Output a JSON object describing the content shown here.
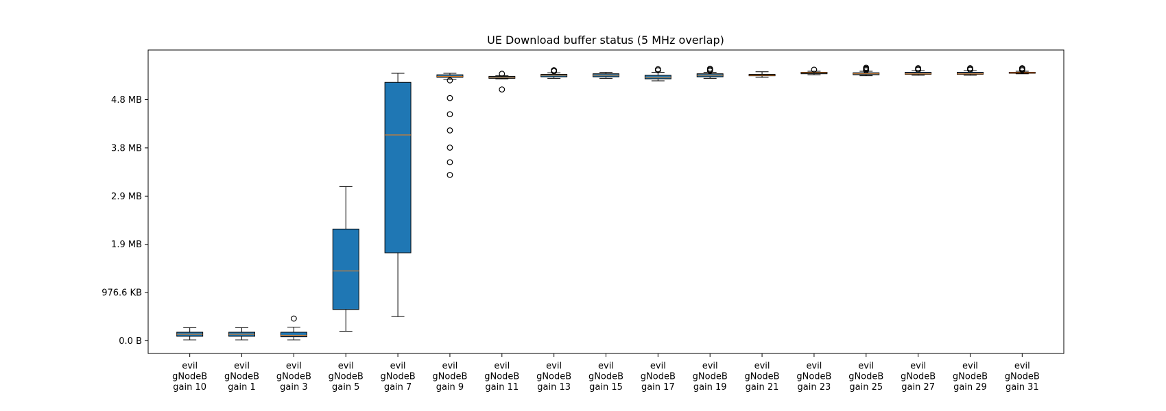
{
  "chart_data": {
    "type": "box",
    "title": "UE Download buffer status (5 MHz overlap)",
    "xlabel": "",
    "ylabel": "",
    "ylim": [
      -0.25,
      5.75
    ],
    "y_ticks": [
      {
        "value": 0.0,
        "label": "0.0 B"
      },
      {
        "value": 0.9537,
        "label": "976.6 KB"
      },
      {
        "value": 1.9073,
        "label": "1.9 MB"
      },
      {
        "value": 2.861,
        "label": "2.9 MB"
      },
      {
        "value": 3.8147,
        "label": "3.8 MB"
      },
      {
        "value": 4.7684,
        "label": "4.8 MB"
      }
    ],
    "units": "MB",
    "colors": {
      "box_fill": "#1f77b4",
      "median": "#ff7f0e",
      "edge": "#000000"
    },
    "categories": [
      "evil gNodeB gain 10",
      "evil gNodeB gain 1",
      "evil gNodeB gain 3",
      "evil gNodeB gain 5",
      "evil gNodeB gain 7",
      "evil gNodeB gain 9",
      "evil gNodeB gain 11",
      "evil gNodeB gain 13",
      "evil gNodeB gain 15",
      "evil gNodeB gain 17",
      "evil gNodeB gain 19",
      "evil gNodeB gain 21",
      "evil gNodeB gain 23",
      "evil gNodeB gain 25",
      "evil gNodeB gain 27",
      "evil gNodeB gain 29",
      "evil gNodeB gain 31"
    ],
    "boxes": [
      {
        "whislo": 0.02,
        "q1": 0.09,
        "med": 0.13,
        "q3": 0.17,
        "whishi": 0.26,
        "fliers": []
      },
      {
        "whislo": 0.02,
        "q1": 0.09,
        "med": 0.13,
        "q3": 0.17,
        "whishi": 0.26,
        "fliers": []
      },
      {
        "whislo": 0.02,
        "q1": 0.08,
        "med": 0.11,
        "q3": 0.17,
        "whishi": 0.27,
        "fliers": [
          0.44
        ]
      },
      {
        "whislo": 0.19,
        "q1": 0.62,
        "med": 1.38,
        "q3": 2.21,
        "whishi": 3.05,
        "fliers": []
      },
      {
        "whislo": 0.48,
        "q1": 1.74,
        "med": 4.07,
        "q3": 5.11,
        "whishi": 5.29,
        "fliers": []
      },
      {
        "whislo": 5.17,
        "q1": 5.21,
        "med": 5.23,
        "q3": 5.26,
        "whishi": 5.29,
        "fliers": [
          5.15,
          4.8,
          4.48,
          4.16,
          3.82,
          3.53,
          3.28
        ]
      },
      {
        "whislo": 5.18,
        "q1": 5.19,
        "med": 5.21,
        "q3": 5.23,
        "whishi": 5.24,
        "fliers": [
          5.28,
          4.97
        ]
      },
      {
        "whislo": 5.19,
        "q1": 5.22,
        "med": 5.25,
        "q3": 5.27,
        "whishi": 5.3,
        "fliers": [
          5.33,
          5.35
        ]
      },
      {
        "whislo": 5.19,
        "q1": 5.22,
        "med": 5.25,
        "q3": 5.28,
        "whishi": 5.31,
        "fliers": []
      },
      {
        "whislo": 5.14,
        "q1": 5.18,
        "med": 5.21,
        "q3": 5.25,
        "whishi": 5.31,
        "fliers": [
          5.35,
          5.37
        ]
      },
      {
        "whislo": 5.19,
        "q1": 5.22,
        "med": 5.25,
        "q3": 5.28,
        "whishi": 5.31,
        "fliers": [
          5.34,
          5.36,
          5.38
        ]
      },
      {
        "whislo": 5.21,
        "q1": 5.24,
        "med": 5.25,
        "q3": 5.27,
        "whishi": 5.32,
        "fliers": []
      },
      {
        "whislo": 5.26,
        "q1": 5.28,
        "med": 5.3,
        "q3": 5.31,
        "whishi": 5.33,
        "fliers": [
          5.36
        ]
      },
      {
        "whislo": 5.24,
        "q1": 5.26,
        "med": 5.28,
        "q3": 5.3,
        "whishi": 5.33,
        "fliers": [
          5.35,
          5.37,
          5.38,
          5.4
        ]
      },
      {
        "whislo": 5.25,
        "q1": 5.27,
        "med": 5.28,
        "q3": 5.31,
        "whishi": 5.34,
        "fliers": [
          5.36,
          5.38,
          5.39
        ]
      },
      {
        "whislo": 5.25,
        "q1": 5.27,
        "med": 5.28,
        "q3": 5.31,
        "whishi": 5.34,
        "fliers": [
          5.36,
          5.38,
          5.39
        ]
      },
      {
        "whislo": 5.28,
        "q1": 5.29,
        "med": 5.3,
        "q3": 5.31,
        "whishi": 5.33,
        "fliers": [
          5.35,
          5.37,
          5.39
        ]
      }
    ]
  }
}
